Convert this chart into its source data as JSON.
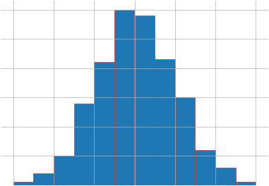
{
  "bin_counts": [
    1,
    4,
    10,
    28,
    42,
    60,
    58,
    43,
    30,
    12,
    6,
    1
  ],
  "bin_edges": [
    -1.0,
    -0.5,
    0.0,
    0.5,
    1.0,
    1.5,
    2.0,
    2.5,
    3.0,
    3.5,
    4.0,
    4.5,
    5.0
  ],
  "bar_color": "#1f77b4",
  "edge_color": "#c0392b",
  "edge_linewidth": 0.5,
  "grid": true,
  "grid_color": "#b0b0b0",
  "grid_linewidth": 0.5,
  "background_color": "#ffffff",
  "fig_width": 3.81,
  "fig_height": 2.64,
  "dpi": 100
}
